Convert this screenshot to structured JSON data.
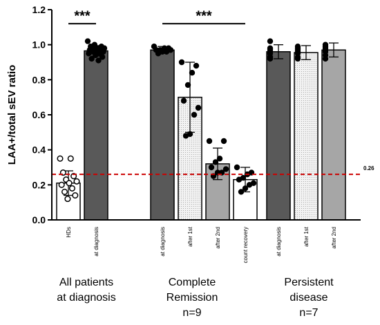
{
  "chart_data": {
    "type": "bar",
    "ylabel": "LAA+/total  sEV  ratio",
    "ylim": [
      0,
      1.2
    ],
    "yticks": [
      0.0,
      0.2,
      0.4,
      0.6,
      0.8,
      1.0,
      1.2
    ],
    "reference_line": {
      "value": 0.26,
      "label": "0.26",
      "color": "#cc0000",
      "style": "dashed"
    },
    "groups": [
      {
        "name_lines": [
          "All patients",
          "at diagnosis"
        ]
      },
      {
        "name_lines": [
          "Complete",
          "Remission",
          "n=9"
        ]
      },
      {
        "name_lines": [
          "Persistent",
          "disease",
          "n=7"
        ]
      }
    ],
    "bars": [
      {
        "label": "HDs",
        "group": 0,
        "slot": 0,
        "value": 0.21,
        "error": 0.07,
        "fill": "white",
        "points": [
          0.35,
          0.35,
          0.27,
          0.25,
          0.23,
          0.22,
          0.21,
          0.2,
          0.18,
          0.16,
          0.14,
          0.12
        ],
        "point_style": "open"
      },
      {
        "label": "at diagnosis",
        "group": 0,
        "slot": 1,
        "value": 0.965,
        "error": 0.03,
        "fill": "dark",
        "points": [
          1.02,
          1.0,
          0.99,
          0.99,
          0.98,
          0.98,
          0.97,
          0.97,
          0.97,
          0.96,
          0.96,
          0.96,
          0.95,
          0.95,
          0.94,
          0.93,
          0.92,
          0.91
        ],
        "point_style": "filled"
      },
      {
        "label": "at diagnosis",
        "group": 1,
        "slot": 0,
        "value": 0.97,
        "error": 0.02,
        "fill": "dark",
        "points": [
          0.99,
          0.98,
          0.98,
          0.97,
          0.97,
          0.97,
          0.96,
          0.96,
          0.95
        ],
        "point_style": "filled"
      },
      {
        "label": "after 1st",
        "group": 1,
        "slot": 1,
        "value": 0.7,
        "error": 0.2,
        "fill": "dotted",
        "points": [
          0.9,
          0.88,
          0.84,
          0.77,
          0.68,
          0.64,
          0.6,
          0.49,
          0.48
        ],
        "point_style": "filled"
      },
      {
        "label": "after 2nd",
        "group": 1,
        "slot": 2,
        "value": 0.32,
        "error": 0.09,
        "fill": "light",
        "points": [
          0.45,
          0.45,
          0.35,
          0.33,
          0.3,
          0.29,
          0.27,
          0.27,
          0.25
        ],
        "point_style": "filled"
      },
      {
        "label": "count recovery",
        "group": 1,
        "slot": 3,
        "value": 0.23,
        "error": 0.07,
        "fill": "white",
        "points": [
          0.3,
          0.27,
          0.26,
          0.24,
          0.23,
          0.21,
          0.2,
          0.18,
          0.16
        ],
        "point_style": "filled"
      },
      {
        "label": "at diagnosis",
        "group": 2,
        "slot": 0,
        "value": 0.96,
        "error": 0.04,
        "fill": "dark",
        "points": [
          1.02,
          0.98,
          0.97,
          0.96,
          0.95,
          0.93,
          0.92
        ],
        "point_style": "filled"
      },
      {
        "label": "after 1st",
        "group": 2,
        "slot": 1,
        "value": 0.955,
        "error": 0.04,
        "fill": "dotted",
        "points": [
          0.99,
          0.98,
          0.97,
          0.96,
          0.95,
          0.93,
          0.92
        ],
        "point_style": "filled"
      },
      {
        "label": "after 2nd",
        "group": 2,
        "slot": 2,
        "value": 0.97,
        "error": 0.04,
        "fill": "light",
        "points": [
          1.0,
          0.99,
          0.98,
          0.97,
          0.96,
          0.94,
          0.92
        ],
        "point_style": "filled"
      }
    ],
    "significance": [
      {
        "label": "***",
        "from_bar": 0,
        "to_bar": 1,
        "y": 1.12
      },
      {
        "label": "***",
        "from_bar": 2,
        "to_bar": 5,
        "y": 1.12
      }
    ],
    "colors": {
      "dark": "#595959",
      "light": "#a6a6a6",
      "white": "#ffffff",
      "dotted_bg": "#f2f2f2",
      "dot": "#9a9a9a",
      "reference": "#cc0000"
    }
  }
}
